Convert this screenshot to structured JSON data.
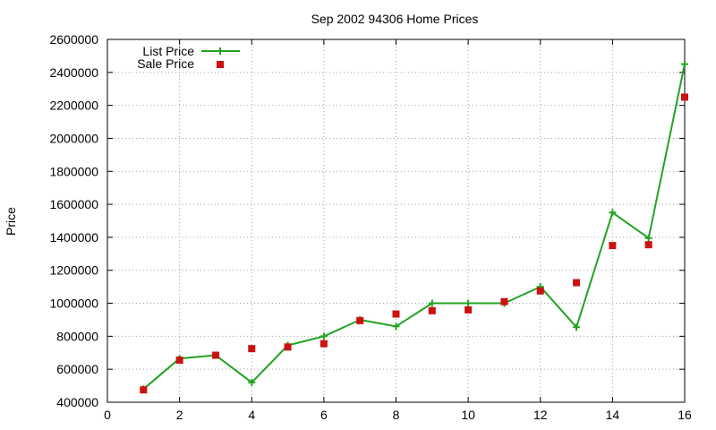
{
  "chart_data": {
    "type": "line",
    "title": "Sep 2002 94306 Home Prices",
    "xlabel": "",
    "ylabel": "Price",
    "xlim": [
      0,
      16
    ],
    "ylim": [
      400000,
      2600000
    ],
    "x_ticks": [
      0,
      2,
      4,
      6,
      8,
      10,
      12,
      14,
      16
    ],
    "y_ticks": [
      400000,
      600000,
      800000,
      1000000,
      1200000,
      1400000,
      1600000,
      1800000,
      2000000,
      2200000,
      2400000,
      2600000
    ],
    "grid": true,
    "legend_position": "top-left",
    "series": [
      {
        "name": "List Price",
        "style": "lines-with-plus-markers",
        "color": "#22a322",
        "x": [
          1,
          2,
          3,
          4,
          5,
          6,
          7,
          8,
          9,
          10,
          11,
          12,
          13,
          14,
          15,
          16
        ],
        "y": [
          480000,
          665000,
          685000,
          520000,
          745000,
          800000,
          900000,
          860000,
          1000000,
          1000000,
          1000000,
          1100000,
          855000,
          1550000,
          1395000,
          2450000
        ]
      },
      {
        "name": "Sale Price",
        "style": "square-points",
        "color": "#cc1111",
        "x": [
          1,
          2,
          3,
          4,
          5,
          6,
          7,
          8,
          9,
          10,
          11,
          12,
          13,
          14,
          15,
          16
        ],
        "y": [
          475000,
          655000,
          685000,
          725000,
          735000,
          755000,
          895000,
          935000,
          955000,
          960000,
          1010000,
          1075000,
          1125000,
          1350000,
          1355000,
          2250000
        ]
      }
    ]
  }
}
